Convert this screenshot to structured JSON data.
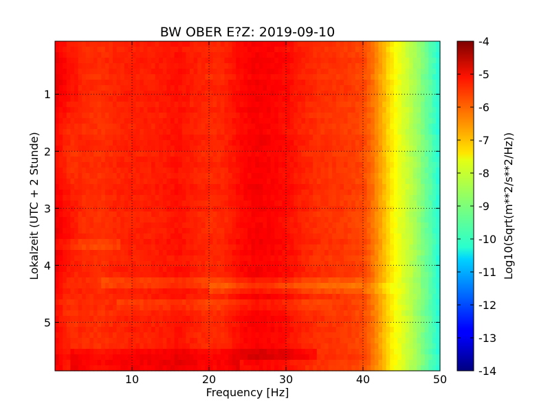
{
  "chart_data": {
    "type": "heatmap",
    "title": "BW OBER E?Z: 2019-09-10",
    "xlabel": "Frequency [Hz]",
    "ylabel": "Lokalzeit (UTC + 2 Stunde)",
    "xlim": [
      0,
      50
    ],
    "ylim": [
      5.85,
      0.07
    ],
    "x_ticks": [
      "10",
      "20",
      "30",
      "40",
      "50"
    ],
    "x_tick_values": [
      10,
      20,
      30,
      40,
      50
    ],
    "y_ticks": [
      "1",
      "2",
      "3",
      "4",
      "5"
    ],
    "y_tick_values": [
      1,
      2,
      3,
      4,
      5
    ],
    "grid": "dotted",
    "colormap": "jet",
    "colorbar": {
      "label": "Log10(Sqrt(m**2/s**2/Hz))",
      "range": [
        -14,
        -4
      ],
      "ticks": [
        "-4",
        "-5",
        "-6",
        "-7",
        "-8",
        "-9",
        "-10",
        "-11",
        "-12",
        "-13",
        "-14"
      ],
      "tick_values": [
        -4,
        -5,
        -6,
        -7,
        -8,
        -9,
        -10,
        -11,
        -12,
        -13,
        -14
      ]
    },
    "frequency_profile": {
      "frequency_hz": [
        0,
        1,
        2,
        4,
        6,
        8,
        10,
        12,
        14,
        16,
        18,
        20,
        22,
        24,
        26,
        28,
        30,
        32,
        34,
        36,
        38,
        40,
        41,
        42,
        43,
        44,
        45,
        46,
        47,
        48,
        49,
        50
      ],
      "log10_amplitude": [
        -5.2,
        -5.4,
        -5.55,
        -5.65,
        -5.7,
        -5.6,
        -5.55,
        -5.55,
        -5.5,
        -5.4,
        -5.55,
        -5.65,
        -5.6,
        -5.35,
        -5.2,
        -5.25,
        -5.35,
        -5.55,
        -5.7,
        -5.75,
        -5.8,
        -5.95,
        -6.25,
        -6.7,
        -7.2,
        -7.7,
        -8.05,
        -8.35,
        -8.7,
        -9.1,
        -9.5,
        -9.95
      ]
    },
    "time_features": [
      {
        "time": 3.63,
        "freq_range": [
          0,
          8.5
        ],
        "delta": -0.25
      },
      {
        "time": 4.3,
        "freq_range": [
          6,
          40
        ],
        "delta": -0.25
      },
      {
        "time": 4.42,
        "freq_range": [
          20,
          44
        ],
        "delta": -0.3
      },
      {
        "time": 4.72,
        "freq_range": [
          8,
          36
        ],
        "delta": -0.2
      },
      {
        "time": 5.55,
        "freq_range": [
          2,
          34
        ],
        "delta": 0.3
      },
      {
        "time": 5.75,
        "freq_range": [
          2,
          24
        ],
        "delta": 0.4
      }
    ],
    "colors": {
      "axes": "#000000",
      "background": "#ffffff"
    }
  }
}
